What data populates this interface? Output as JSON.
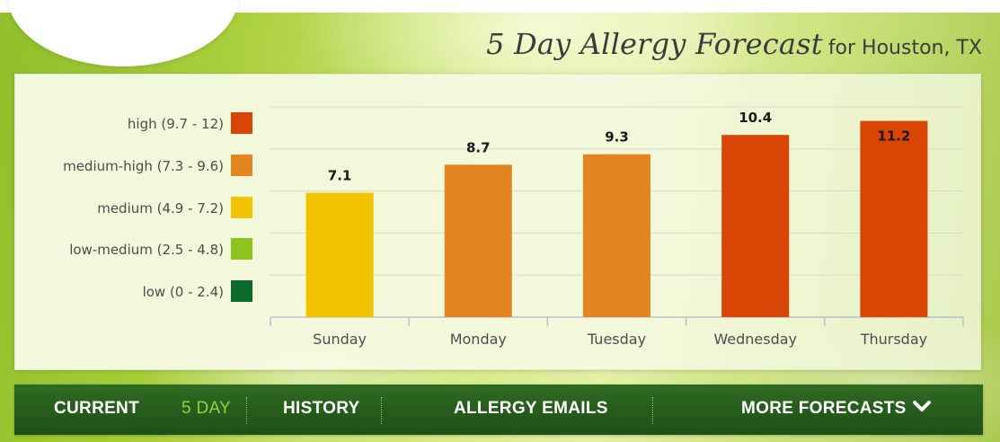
{
  "header": {
    "title_main": "5 Day Allergy Forecast",
    "title_sub": "for Houston, TX"
  },
  "legend": [
    {
      "label": "high (9.7 - 12)",
      "color": "#d94505"
    },
    {
      "label": "medium-high (7.3 - 9.6)",
      "color": "#e38520"
    },
    {
      "label": "medium (4.9 - 7.2)",
      "color": "#f2c300"
    },
    {
      "label": "low-medium (2.5 - 4.8)",
      "color": "#8cc31d"
    },
    {
      "label": "low (0 - 2.4)",
      "color": "#0b6a2c"
    }
  ],
  "chart_data": {
    "type": "bar",
    "title": "5 Day Allergy Forecast for Houston, TX",
    "categories": [
      "Sunday",
      "Monday",
      "Tuesday",
      "Wednesday",
      "Thursday"
    ],
    "values": [
      7.1,
      8.7,
      9.3,
      10.4,
      11.2
    ],
    "value_labels": [
      "7.1",
      "8.7",
      "9.3",
      "10.4",
      "11.2"
    ],
    "bar_colors": [
      "#f2c300",
      "#e38520",
      "#e38520",
      "#d94505",
      "#d94505"
    ],
    "xlabel": "",
    "ylabel": "",
    "ylim": [
      0,
      12
    ],
    "grid": true,
    "legend_position": "left"
  },
  "nav": {
    "current": "CURRENT",
    "five_day": "5 DAY",
    "history": "HISTORY",
    "allergy_emails": "ALLERGY EMAILS",
    "more_forecasts": "MORE FORECASTS"
  },
  "icons": {
    "more_forecasts": "chevron-down-icon"
  }
}
